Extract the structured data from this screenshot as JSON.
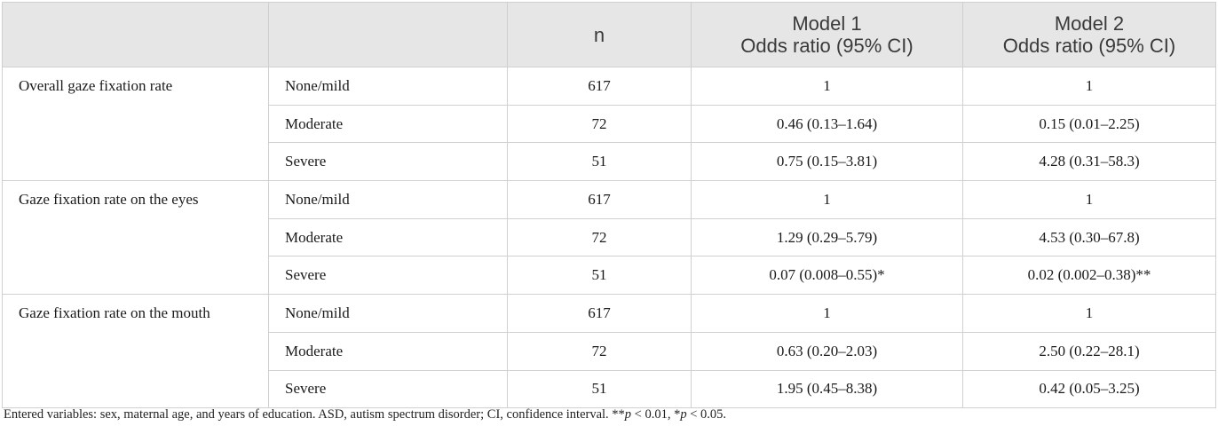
{
  "table": {
    "headers": {
      "col_blank1": "",
      "col_blank2": "",
      "n": "n",
      "model1_line1": "Model 1",
      "model1_line2": "Odds ratio (95% CI)",
      "model2_line1": "Model 2",
      "model2_line2": "Odds ratio (95% CI)"
    },
    "groups": [
      {
        "label": "Overall gaze fixation rate",
        "rows": [
          {
            "category": "None/mild",
            "n": "617",
            "model1": "1",
            "model2": "1"
          },
          {
            "category": "Moderate",
            "n": "72",
            "model1": "0.46 (0.13–1.64)",
            "model2": "0.15 (0.01–2.25)"
          },
          {
            "category": "Severe",
            "n": "51",
            "model1": "0.75 (0.15–3.81)",
            "model2": "4.28 (0.31–58.3)"
          }
        ]
      },
      {
        "label": "Gaze fixation rate on the eyes",
        "rows": [
          {
            "category": "None/mild",
            "n": "617",
            "model1": "1",
            "model2": "1"
          },
          {
            "category": "Moderate",
            "n": "72",
            "model1": "1.29 (0.29–5.79)",
            "model2": "4.53 (0.30–67.8)"
          },
          {
            "category": "Severe",
            "n": "51",
            "model1": "0.07 (0.008–0.55)*",
            "model2": "0.02 (0.002–0.38)**"
          }
        ]
      },
      {
        "label": "Gaze fixation rate on the mouth",
        "rows": [
          {
            "category": "None/mild",
            "n": "617",
            "model1": "1",
            "model2": "1"
          },
          {
            "category": "Moderate",
            "n": "72",
            "model1": "0.63 (0.20–2.03)",
            "model2": "2.50 (0.22–28.1)"
          },
          {
            "category": "Severe",
            "n": "51",
            "model1": "1.95 (0.45–8.38)",
            "model2": "0.42 (0.05–3.25)"
          }
        ]
      }
    ]
  },
  "footnote": {
    "text": "Entered variables: sex, maternal age, and years of education. ASD, autism spectrum disorder; CI, confidence interval. **",
    "p1_var": "p",
    "p1_rest": " < 0.01, *",
    "p2_var": "p",
    "p2_rest": " < 0.05."
  }
}
